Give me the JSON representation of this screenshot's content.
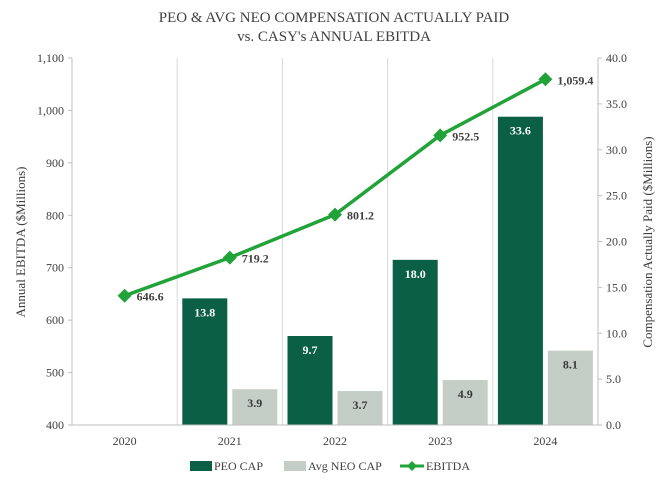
{
  "colors": {
    "peo": "#0a5f45",
    "neo": "#c4cec6",
    "ebitda": "#22a33a",
    "grid": "#d9d9d9",
    "axis_text": "#404040",
    "bar_label_dark": "#ffffff",
    "bar_label_light": "#3a3a3a"
  },
  "chart_data": {
    "type": "bar",
    "title_line1": "PEO & AVG NEO COMPENSATION ACTUALLY PAID",
    "title_line2": "vs. CASY's ANNUAL EBITDA",
    "categories": [
      "2020",
      "2021",
      "2022",
      "2023",
      "2024"
    ],
    "ylabel_left": "Annual EBITDA ($Millions)",
    "ylabel_right": "Compensation Actually Paid ($Millions)",
    "ylim_left": [
      400,
      1100
    ],
    "ylim_right": [
      0,
      40
    ],
    "yticks_left": [
      "400",
      "500",
      "600",
      "700",
      "800",
      "900",
      "1,000",
      "1,100"
    ],
    "yticks_right": [
      "0.0",
      "5.0",
      "10.0",
      "15.0",
      "20.0",
      "25.0",
      "30.0",
      "35.0",
      "40.0"
    ],
    "series": [
      {
        "name": "PEO CAP",
        "type": "bar",
        "axis": "right",
        "values": [
          null,
          13.8,
          9.7,
          18.0,
          33.6
        ],
        "labels": [
          "",
          "13.8",
          "9.7",
          "18.0",
          "33.6"
        ]
      },
      {
        "name": "Avg NEO CAP",
        "type": "bar",
        "axis": "right",
        "values": [
          null,
          3.9,
          3.7,
          4.9,
          8.1
        ],
        "labels": [
          "",
          "3.9",
          "3.7",
          "4.9",
          "8.1"
        ]
      },
      {
        "name": "EBITDA",
        "type": "line",
        "axis": "left",
        "values": [
          646.6,
          719.2,
          801.2,
          952.5,
          1059.4
        ],
        "labels": [
          "646.6",
          "719.2",
          "801.2",
          "952.5",
          "1,059.4"
        ]
      }
    ],
    "legend_position": "bottom",
    "grid": "vertical"
  }
}
